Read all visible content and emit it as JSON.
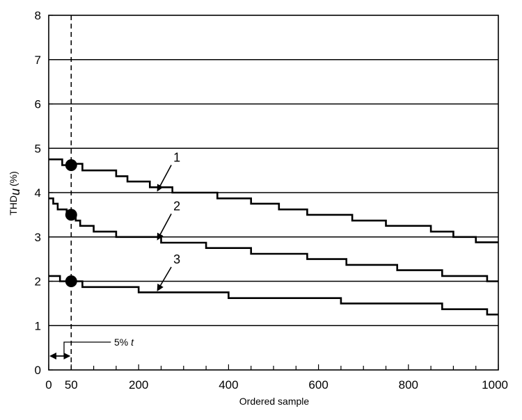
{
  "chart_data": {
    "type": "line",
    "xlabel": "Ordered sample",
    "ylabel": "THD",
    "ylabel_sub": "u",
    "ylabel_unit": "(%)",
    "xlim": [
      0,
      1000
    ],
    "ylim": [
      0,
      8
    ],
    "x_ticks": [
      0,
      50,
      200,
      400,
      600,
      800,
      1000
    ],
    "x_minor_ticks": [
      100,
      150,
      250,
      300,
      350,
      450,
      500,
      550,
      650,
      700,
      750,
      850,
      900,
      950
    ],
    "y_ticks": [
      0,
      1,
      2,
      3,
      4,
      5,
      6,
      7,
      8
    ],
    "grid": "horizontal",
    "vertical_reference": {
      "x": 50,
      "style": "dashed"
    },
    "annotation": {
      "text": "5% t",
      "x_range": [
        0,
        50
      ]
    },
    "series": [
      {
        "name": "1",
        "label_x": 285,
        "label_y": 4.7,
        "arrow_to_x": 295,
        "arrow_to_y": 4.05,
        "points": [
          [
            0,
            4.75
          ],
          [
            30,
            4.75
          ],
          [
            30,
            4.62
          ],
          [
            50,
            4.62
          ],
          [
            50,
            4.65
          ],
          [
            75,
            4.65
          ],
          [
            75,
            4.5
          ],
          [
            150,
            4.5
          ],
          [
            150,
            4.37
          ],
          [
            175,
            4.37
          ],
          [
            175,
            4.25
          ],
          [
            225,
            4.25
          ],
          [
            225,
            4.12
          ],
          [
            275,
            4.12
          ],
          [
            275,
            4.0
          ],
          [
            375,
            4.0
          ],
          [
            375,
            3.87
          ],
          [
            450,
            3.87
          ],
          [
            450,
            3.75
          ],
          [
            512,
            3.75
          ],
          [
            512,
            3.62
          ],
          [
            575,
            3.62
          ],
          [
            575,
            3.5
          ],
          [
            675,
            3.5
          ],
          [
            675,
            3.37
          ],
          [
            750,
            3.37
          ],
          [
            750,
            3.25
          ],
          [
            850,
            3.25
          ],
          [
            850,
            3.12
          ],
          [
            900,
            3.12
          ],
          [
            900,
            3.0
          ],
          [
            950,
            3.0
          ],
          [
            950,
            2.88
          ],
          [
            1000,
            2.88
          ]
        ],
        "marker": [
          50,
          4.62
        ]
      },
      {
        "name": "2",
        "label_x": 285,
        "label_y": 3.6,
        "arrow_to_x": 295,
        "arrow_to_y": 2.95,
        "points": [
          [
            0,
            3.87
          ],
          [
            10,
            3.87
          ],
          [
            10,
            3.75
          ],
          [
            20,
            3.75
          ],
          [
            20,
            3.62
          ],
          [
            40,
            3.62
          ],
          [
            40,
            3.5
          ],
          [
            60,
            3.5
          ],
          [
            60,
            3.37
          ],
          [
            70,
            3.37
          ],
          [
            70,
            3.25
          ],
          [
            100,
            3.25
          ],
          [
            100,
            3.12
          ],
          [
            150,
            3.12
          ],
          [
            150,
            3.0
          ],
          [
            250,
            3.0
          ],
          [
            250,
            2.87
          ],
          [
            350,
            2.87
          ],
          [
            350,
            2.75
          ],
          [
            450,
            2.75
          ],
          [
            450,
            2.62
          ],
          [
            575,
            2.62
          ],
          [
            575,
            2.5
          ],
          [
            662,
            2.5
          ],
          [
            662,
            2.37
          ],
          [
            775,
            2.37
          ],
          [
            775,
            2.25
          ],
          [
            875,
            2.25
          ],
          [
            875,
            2.12
          ],
          [
            975,
            2.12
          ],
          [
            975,
            2.0
          ],
          [
            1000,
            2.0
          ]
        ],
        "marker": [
          50,
          3.5
        ]
      },
      {
        "name": "3",
        "label_x": 285,
        "label_y": 2.4,
        "arrow_to_x": 295,
        "arrow_to_y": 1.8,
        "points": [
          [
            0,
            2.12
          ],
          [
            25,
            2.12
          ],
          [
            25,
            2.0
          ],
          [
            75,
            2.0
          ],
          [
            75,
            1.87
          ],
          [
            200,
            1.87
          ],
          [
            200,
            1.75
          ],
          [
            400,
            1.75
          ],
          [
            400,
            1.62
          ],
          [
            650,
            1.62
          ],
          [
            650,
            1.5
          ],
          [
            875,
            1.5
          ],
          [
            875,
            1.37
          ],
          [
            975,
            1.37
          ],
          [
            975,
            1.25
          ],
          [
            1000,
            1.25
          ]
        ],
        "marker": [
          50,
          2.0
        ]
      }
    ]
  }
}
